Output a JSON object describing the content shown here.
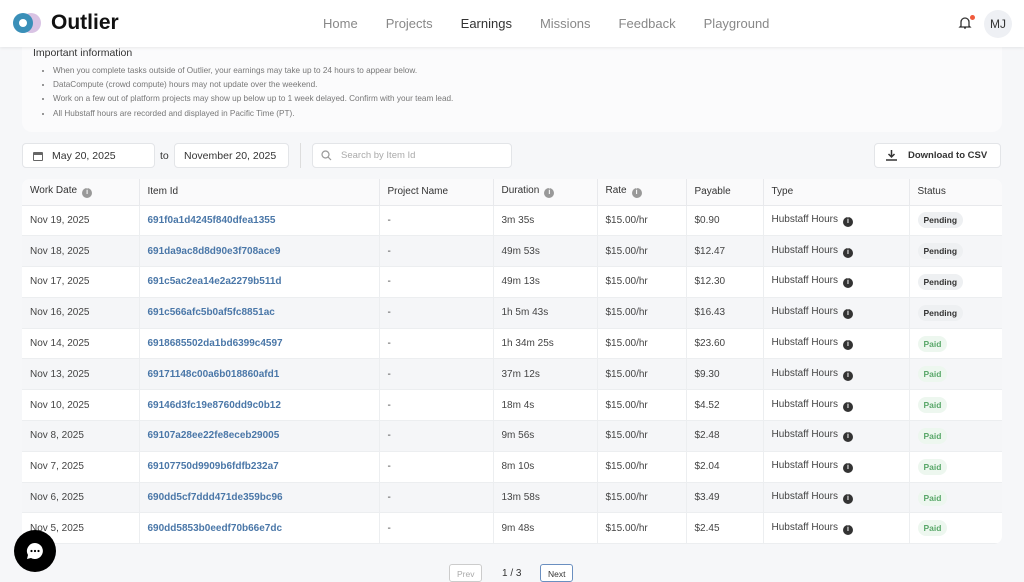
{
  "header": {
    "brand": "Outlier",
    "nav": [
      "Home",
      "Projects",
      "Earnings",
      "Missions",
      "Feedback",
      "Playground"
    ],
    "active": "Earnings",
    "avatar": "MJ",
    "notification_dot_color": "#f05a3c"
  },
  "info": {
    "title": "Important information",
    "items": [
      "When you complete tasks outside of Outlier, your earnings may take up to 24 hours to appear below.",
      "DataCompute (crowd compute) hours may not update over the weekend.",
      "Work on a few out of platform projects may show up below up to 1 week delayed. Confirm with your team lead.",
      "All Hubstaff hours are recorded and displayed in Pacific Time (PT)."
    ]
  },
  "filters": {
    "start_date": "May 20, 2025",
    "to": "to",
    "end_date": "November 20, 2025",
    "search_placeholder": "Search by Item Id",
    "download": "Download to CSV"
  },
  "table": {
    "columns": [
      "Work Date",
      "Item Id",
      "Project Name",
      "Duration",
      "Rate",
      "Payable",
      "Type",
      "Status"
    ],
    "rows": [
      [
        "Nov 19, 2025",
        "691f0a1d4245f840dfea1355",
        "-",
        "3m 35s",
        "$15.00/hr",
        "$0.90",
        "Hubstaff Hours",
        "Pending"
      ],
      [
        "Nov 18, 2025",
        "691da9ac8d8d90e3f708ace9",
        "-",
        "49m 53s",
        "$15.00/hr",
        "$12.47",
        "Hubstaff Hours",
        "Pending"
      ],
      [
        "Nov 17, 2025",
        "691c5ac2ea14e2a2279b511d",
        "-",
        "49m 13s",
        "$15.00/hr",
        "$12.30",
        "Hubstaff Hours",
        "Pending"
      ],
      [
        "Nov 16, 2025",
        "691c566afc5b0af5fc8851ac",
        "-",
        "1h 5m 43s",
        "$15.00/hr",
        "$16.43",
        "Hubstaff Hours",
        "Pending"
      ],
      [
        "Nov 14, 2025",
        "6918685502da1bd6399c4597",
        "-",
        "1h 34m 25s",
        "$15.00/hr",
        "$23.60",
        "Hubstaff Hours",
        "Paid"
      ],
      [
        "Nov 13, 2025",
        "69171148c00a6b018860afd1",
        "-",
        "37m 12s",
        "$15.00/hr",
        "$9.30",
        "Hubstaff Hours",
        "Paid"
      ],
      [
        "Nov 10, 2025",
        "69146d3fc19e8760dd9c0b12",
        "-",
        "18m 4s",
        "$15.00/hr",
        "$4.52",
        "Hubstaff Hours",
        "Paid"
      ],
      [
        "Nov 8, 2025",
        "69107a28ee22fe8eceb29005",
        "-",
        "9m 56s",
        "$15.00/hr",
        "$2.48",
        "Hubstaff Hours",
        "Paid"
      ],
      [
        "Nov 7, 2025",
        "69107750d9909b6fdfb232a7",
        "-",
        "8m 10s",
        "$15.00/hr",
        "$2.04",
        "Hubstaff Hours",
        "Paid"
      ],
      [
        "Nov 6, 2025",
        "690dd5cf7ddd471de359bc96",
        "-",
        "13m 58s",
        "$15.00/hr",
        "$3.49",
        "Hubstaff Hours",
        "Paid"
      ],
      [
        "Nov 5, 2025",
        "690dd5853b0eedf70b66e7dc",
        "-",
        "9m 48s",
        "$15.00/hr",
        "$2.45",
        "Hubstaff Hours",
        "Paid"
      ]
    ]
  },
  "pagination": {
    "prev": "Prev",
    "page": "1 / 3",
    "next": "Next"
  }
}
